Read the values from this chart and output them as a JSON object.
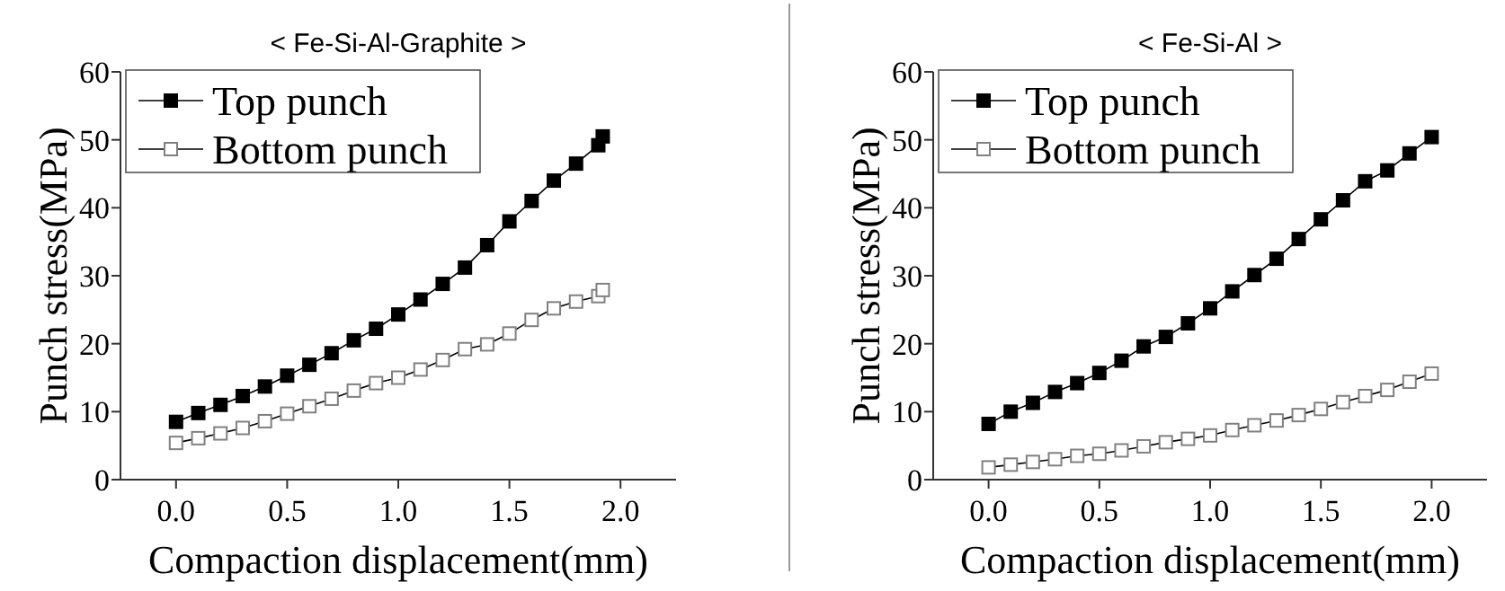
{
  "chart_data": [
    {
      "type": "line",
      "title": "< Fe-Si-Al-Graphite >",
      "xlabel": "Compaction displacement(mm)",
      "ylabel": "Punch stress(MPa)",
      "xlim": [
        -0.25,
        2.25
      ],
      "ylim": [
        0,
        60
      ],
      "xticks": [
        {
          "value": 0,
          "label": "0.0"
        },
        {
          "value": 0.5,
          "label": "0.5"
        },
        {
          "value": 1,
          "label": "1.0"
        },
        {
          "value": 1.5,
          "label": "1.5"
        },
        {
          "value": 2,
          "label": "2.0"
        }
      ],
      "yticks": [
        0,
        10,
        20,
        30,
        40,
        50,
        60
      ],
      "legend": "top left",
      "line_style": "solid",
      "grid": false,
      "x": [
        0,
        0.1,
        0.2,
        0.3,
        0.4,
        0.5,
        0.6,
        0.7,
        0.8,
        0.9,
        1.0,
        1.1,
        1.2,
        1.3,
        1.4,
        1.5,
        1.6,
        1.7,
        1.8,
        1.9,
        1.92
      ],
      "series": [
        {
          "name": "Top punch",
          "color": "#000000",
          "marker": "square",
          "values": [
            8.5,
            9.8,
            11,
            12.3,
            13.7,
            15.3,
            16.9,
            18.6,
            20.5,
            22.2,
            24.3,
            26.5,
            28.8,
            31.2,
            34.5,
            38,
            41,
            44,
            46.5,
            49.2,
            50.5
          ]
        },
        {
          "name": "Bottom punch",
          "color": "#808080",
          "marker": "square-open",
          "values": [
            5.4,
            6.1,
            6.8,
            7.6,
            8.6,
            9.7,
            10.8,
            11.9,
            13.1,
            14.2,
            15.0,
            16.2,
            17.6,
            19.2,
            19.9,
            21.5,
            23.5,
            25.2,
            26.2,
            27,
            27.9
          ]
        }
      ]
    },
    {
      "type": "line",
      "title": "< Fe-Si-Al >",
      "xlabel": "Compaction displacement(mm)",
      "ylabel": "Punch stress(MPa)",
      "xlim": [
        -0.25,
        2.25
      ],
      "ylim": [
        0,
        60
      ],
      "xticks": [
        {
          "value": 0,
          "label": "0.0"
        },
        {
          "value": 0.5,
          "label": "0.5"
        },
        {
          "value": 1,
          "label": "1.0"
        },
        {
          "value": 1.5,
          "label": "1.5"
        },
        {
          "value": 2,
          "label": "2.0"
        }
      ],
      "yticks": [
        0,
        10,
        20,
        30,
        40,
        50,
        60
      ],
      "legend": "top left",
      "line_style": "solid",
      "grid": false,
      "x": [
        0,
        0.1,
        0.2,
        0.3,
        0.4,
        0.5,
        0.6,
        0.7,
        0.8,
        0.9,
        1.0,
        1.1,
        1.2,
        1.3,
        1.4,
        1.5,
        1.6,
        1.7,
        1.8,
        1.9,
        2.0
      ],
      "series": [
        {
          "name": "Top punch",
          "color": "#000000",
          "marker": "square",
          "values": [
            8.2,
            10,
            11.3,
            12.9,
            14.2,
            15.7,
            17.5,
            19.6,
            21,
            23,
            25.2,
            27.7,
            30.1,
            32.5,
            35.4,
            38.3,
            41.1,
            43.9,
            45.5,
            48,
            50.4
          ]
        },
        {
          "name": "Bottom punch",
          "color": "#808080",
          "marker": "square-open",
          "values": [
            1.8,
            2.2,
            2.6,
            3,
            3.5,
            3.8,
            4.3,
            4.9,
            5.5,
            6,
            6.5,
            7.3,
            8.0,
            8.7,
            9.5,
            10.4,
            11.4,
            12.3,
            13.2,
            14.4,
            15.6
          ]
        }
      ]
    }
  ]
}
